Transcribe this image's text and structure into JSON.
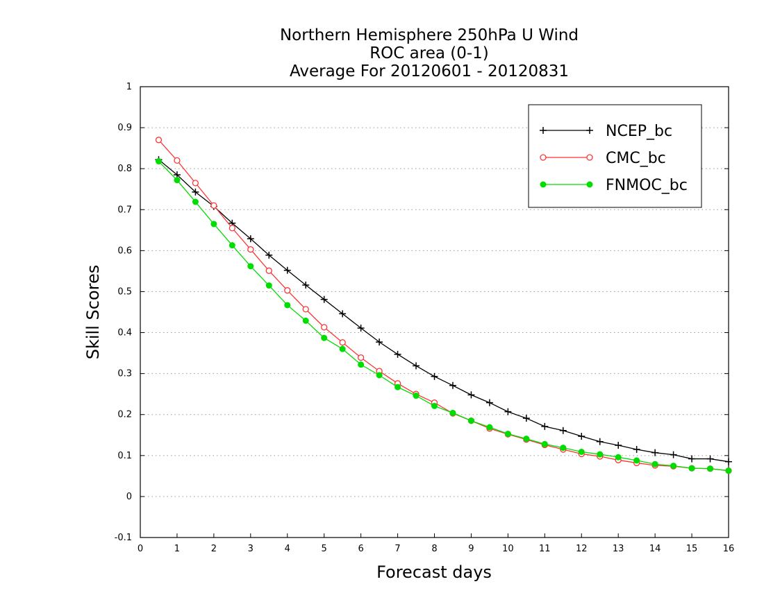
{
  "chart_data": {
    "type": "line",
    "title": [
      "Northern Hemisphere 250hPa U Wind",
      "ROC area (0-1)",
      "Average For 20120601 - 20120831"
    ],
    "xlabel": "Forecast days",
    "ylabel": "Skill Scores",
    "xlim": [
      0,
      16
    ],
    "ylim": [
      -0.1,
      1
    ],
    "xticks": [
      "0",
      "1",
      "2",
      "3",
      "4",
      "5",
      "6",
      "7",
      "8",
      "9",
      "10",
      "11",
      "12",
      "13",
      "14",
      "15",
      "16"
    ],
    "yticks": [
      "-0.1",
      "0",
      "0.1",
      "0.2",
      "0.3",
      "0.4",
      "0.5",
      "0.6",
      "0.7",
      "0.8",
      "0.9",
      "1"
    ],
    "grid": "horizontal dotted",
    "legend_position": "top-right",
    "x": [
      0.5,
      1,
      1.5,
      2,
      2.5,
      3,
      3.5,
      4,
      4.5,
      5,
      5.5,
      6,
      6.5,
      7,
      7.5,
      8,
      8.5,
      9,
      9.5,
      10,
      10.5,
      11,
      11.5,
      12,
      12.5,
      13,
      13.5,
      14,
      14.5,
      15,
      15.5,
      16
    ],
    "series": [
      {
        "name": "NCEP_bc",
        "color": "#000000",
        "marker": "plus",
        "values": [
          0.822,
          0.785,
          0.743,
          0.708,
          0.667,
          0.629,
          0.589,
          0.552,
          0.516,
          0.481,
          0.446,
          0.411,
          0.377,
          0.347,
          0.319,
          0.293,
          0.271,
          0.248,
          0.229,
          0.207,
          0.191,
          0.171,
          0.161,
          0.147,
          0.134,
          0.125,
          0.115,
          0.107,
          0.102,
          0.092,
          0.092,
          0.085
        ]
      },
      {
        "name": "CMC_bc",
        "color": "#ff3333",
        "marker": "open-circle",
        "values": [
          0.87,
          0.82,
          0.765,
          0.71,
          0.655,
          0.603,
          0.551,
          0.503,
          0.457,
          0.413,
          0.376,
          0.339,
          0.306,
          0.276,
          0.25,
          0.229,
          0.203,
          0.185,
          0.166,
          0.152,
          0.139,
          0.126,
          0.115,
          0.104,
          0.098,
          0.089,
          0.082,
          0.076,
          0.074,
          0.069,
          0.068,
          0.063
        ]
      },
      {
        "name": "FNMOC_bc",
        "color": "#00dd00",
        "marker": "filled-circle",
        "values": [
          0.818,
          0.772,
          0.719,
          0.665,
          0.613,
          0.562,
          0.515,
          0.467,
          0.429,
          0.387,
          0.36,
          0.322,
          0.296,
          0.267,
          0.246,
          0.221,
          0.204,
          0.185,
          0.169,
          0.153,
          0.141,
          0.128,
          0.119,
          0.109,
          0.103,
          0.096,
          0.088,
          0.079,
          0.075,
          0.069,
          0.068,
          0.063
        ]
      }
    ]
  }
}
